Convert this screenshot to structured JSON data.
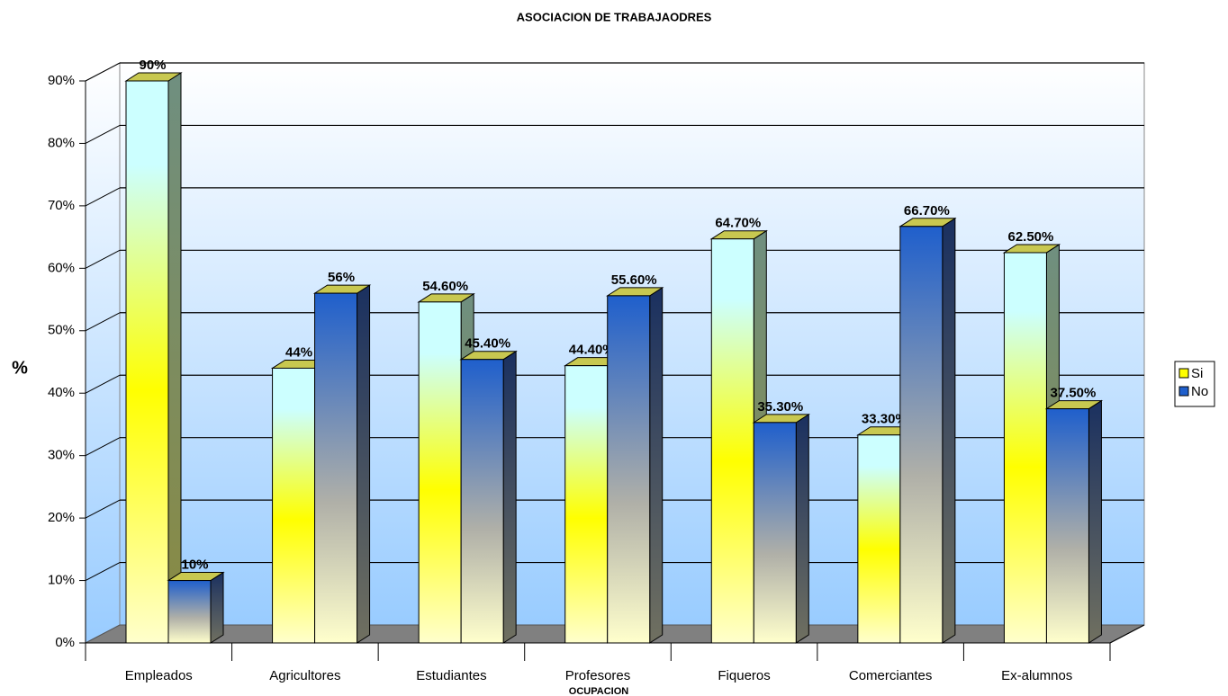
{
  "chart_data": {
    "type": "bar3d",
    "title": "ASOCIACION DE TRABAJAODRES",
    "xlabel": "OCUPACION",
    "ylabel": "%",
    "categories": [
      "Empleados",
      "Agricultores",
      "Estudiantes",
      "Profesores",
      "Fiqueros",
      "Comerciantes",
      "Ex-alumnos"
    ],
    "series": [
      {
        "name": "Si",
        "color": "#ffff00",
        "values": [
          90,
          44,
          54.6,
          44.4,
          64.7,
          33.3,
          62.5
        ],
        "value_labels": [
          "90%",
          "44%",
          "54.60%",
          "44.40%",
          "64.70%",
          "33.30%",
          "62.50%"
        ]
      },
      {
        "name": "No",
        "color": "#1f5fcc",
        "values": [
          10,
          56,
          45.4,
          55.6,
          35.3,
          66.7,
          37.5
        ],
        "value_labels": [
          "10%",
          "56%",
          "45.40%",
          "55.60%",
          "35.30%",
          "66.70%",
          "37.50%"
        ]
      }
    ],
    "ylim": [
      0,
      90
    ],
    "yticks": [
      {
        "value": 0,
        "label": "0%"
      },
      {
        "value": 10,
        "label": "10%"
      },
      {
        "value": 20,
        "label": "20%"
      },
      {
        "value": 30,
        "label": "30%"
      },
      {
        "value": 40,
        "label": "40%"
      },
      {
        "value": 50,
        "label": "50%"
      },
      {
        "value": 60,
        "label": "60%"
      },
      {
        "value": 70,
        "label": "70%"
      },
      {
        "value": 80,
        "label": "80%"
      },
      {
        "value": 90,
        "label": "90%"
      }
    ],
    "grid": true,
    "legend": "right"
  }
}
